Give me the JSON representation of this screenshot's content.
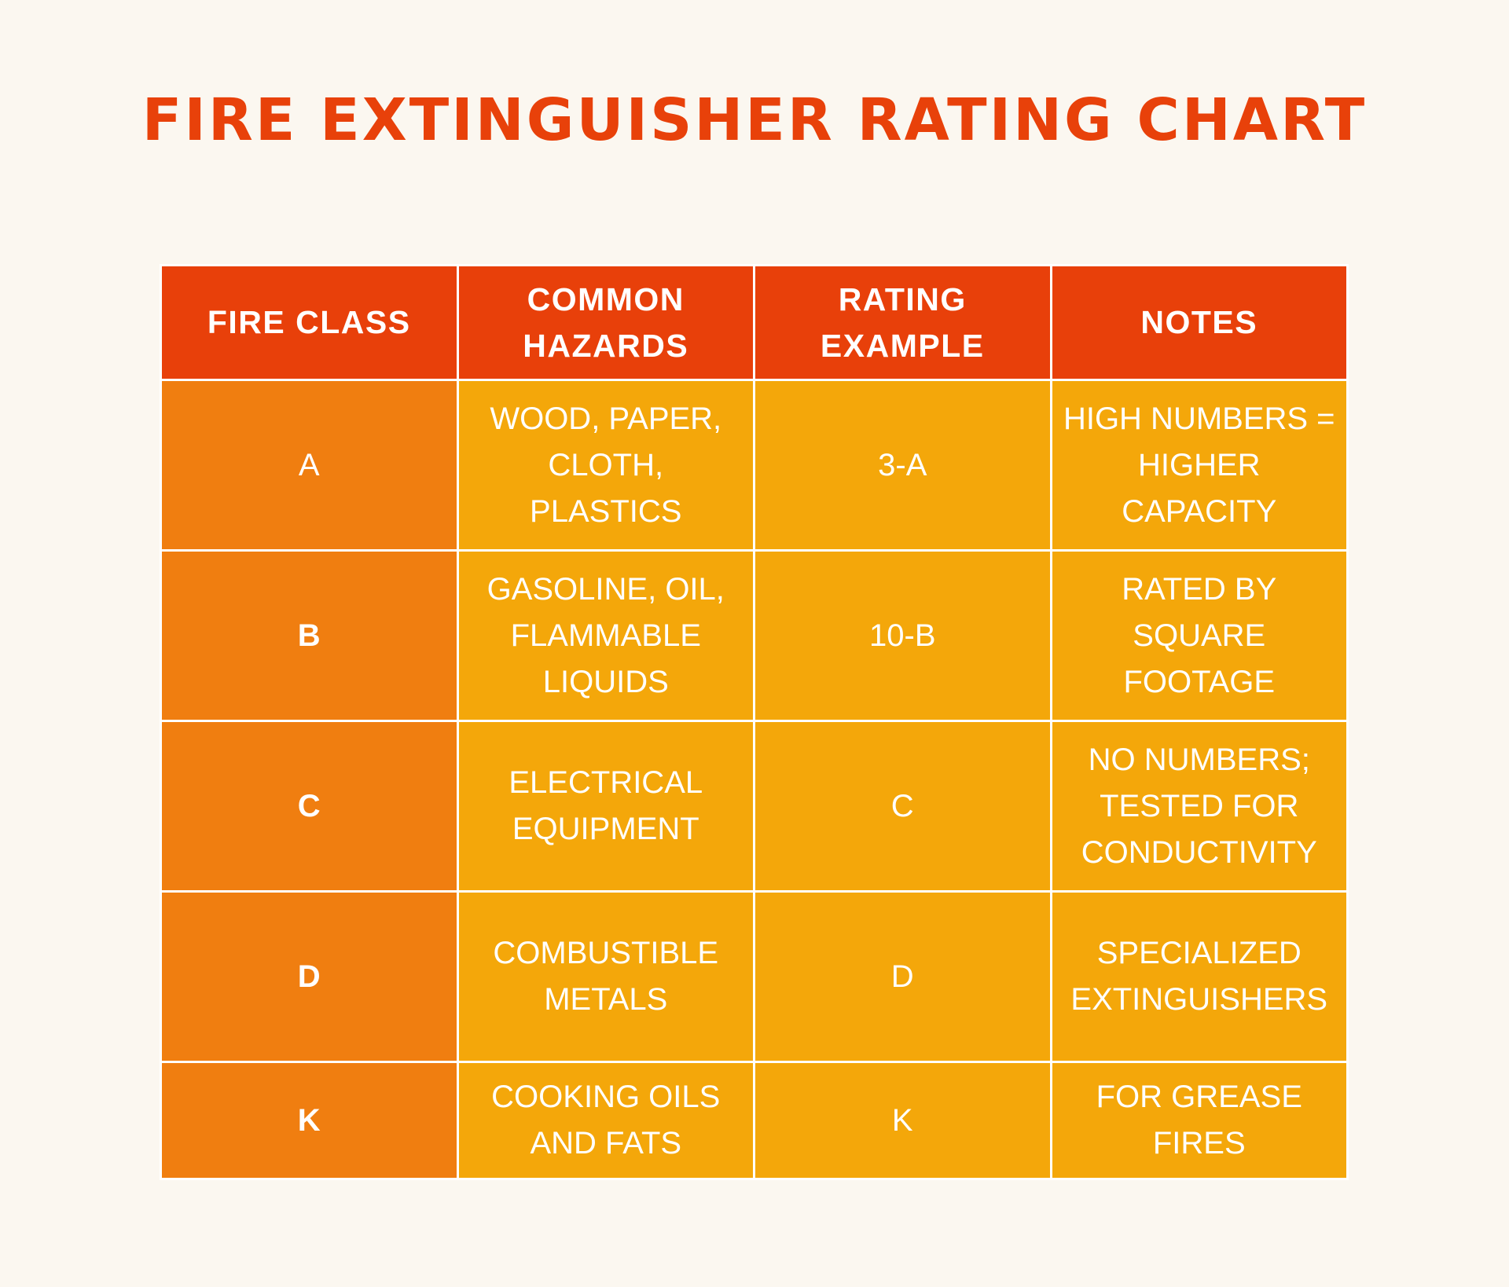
{
  "title": "FIRE EXTINGUISHER RATING CHART",
  "table": {
    "header": [
      "FIRE CLASS",
      "COMMON HAZARDS",
      "RATING EXAMPLE",
      "NOTES"
    ],
    "rows": [
      [
        "A",
        "WOOD, PAPER, CLOTH, PLASTICS",
        "3-A",
        "HIGH NUMBERS = HIGHER CAPACITY"
      ],
      [
        "B",
        "GASOLINE, OIL, FLAMMABLE LIQUIDS",
        "10-B",
        "RATED BY SQUARE FOOTAGE"
      ],
      [
        "C",
        "ELECTRICAL EQUIPMENT",
        "C",
        "NO NUMBERS; TESTED FOR CONDUCTIVITY"
      ],
      [
        "D",
        "COMBUSTIBLE METALS",
        "D",
        "SPECIALIZED EXTINGUISHERS"
      ],
      [
        "K",
        "COOKING OILS AND FATS",
        "K",
        "FOR GREASE FIRES"
      ]
    ]
  }
}
